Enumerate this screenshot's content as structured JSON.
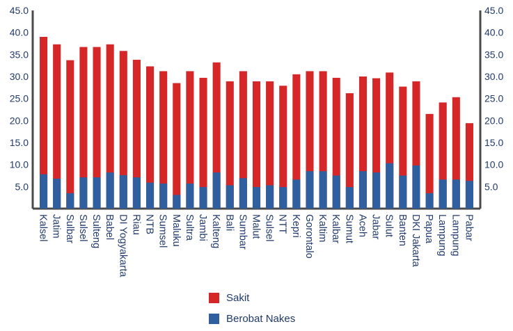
{
  "chart_data": {
    "type": "bar",
    "stacked": true,
    "categories": [
      "Kalsel",
      "Jatim",
      "Sulbar",
      "Sulsel",
      "Sulteng",
      "Babel",
      "DI Yogyakarta",
      "Riau",
      "NTB",
      "Sumsel",
      "Maluku",
      "Sultra",
      "Jambi",
      "Kalteng",
      "Bali",
      "Sumbar",
      "Malut",
      "Sulsel",
      "NTT",
      "Kepri",
      "Gorontalo",
      "Kaltim",
      "Kalbar",
      "Sumut",
      "Aceh",
      "Jabar",
      "Sulut",
      "Banten",
      "DKI Jakarta",
      "Papua",
      "Lampung",
      "Lampung",
      "Pabar"
    ],
    "series": [
      {
        "name": "Sakit",
        "color": "#d62728",
        "values": [
          39.0,
          37.3,
          33.7,
          36.7,
          36.7,
          37.3,
          35.8,
          33.8,
          32.3,
          31.2,
          28.5,
          31.2,
          29.7,
          33.2,
          28.9,
          31.2,
          28.9,
          28.9,
          27.9,
          30.5,
          31.2,
          31.2,
          29.7,
          26.2,
          30.0,
          29.6,
          30.9,
          27.7,
          28.9,
          21.5,
          24.1,
          25.3,
          19.4
        ]
      },
      {
        "name": "Berobat Nakes",
        "color": "#2f5f9e",
        "values": [
          7.8,
          6.8,
          3.5,
          7.1,
          7.1,
          8.2,
          7.6,
          7.1,
          5.9,
          5.7,
          3.1,
          5.7,
          4.9,
          8.2,
          5.3,
          6.9,
          4.9,
          5.3,
          4.9,
          6.6,
          8.5,
          8.5,
          7.5,
          4.9,
          8.5,
          8.2,
          10.3,
          7.5,
          9.8,
          3.5,
          6.6,
          6.6,
          6.3
        ]
      }
    ],
    "ylim": [
      0,
      45
    ],
    "yticks": [
      "5.0",
      "10.0",
      "15.0",
      "20.0",
      "25.0",
      "30.0",
      "35.0",
      "40.0",
      "45.0"
    ],
    "legend_position": "bottom",
    "grid": false
  }
}
